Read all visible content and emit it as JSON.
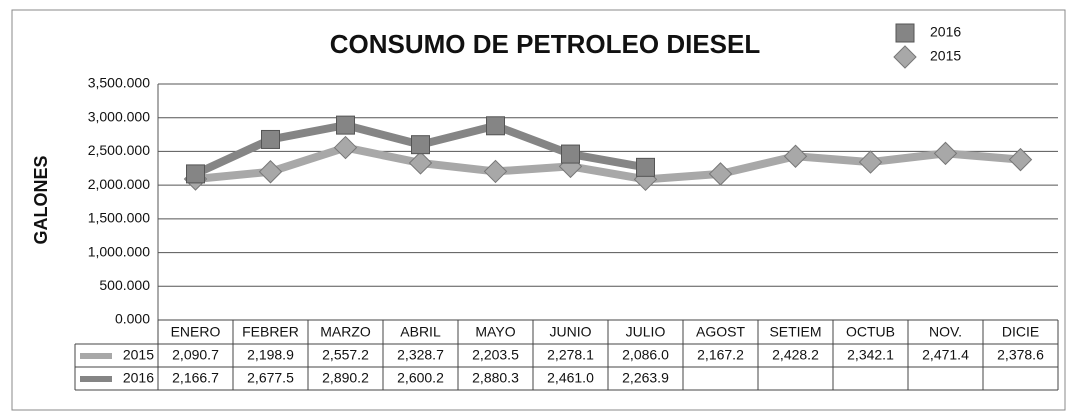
{
  "chart_data": {
    "type": "line",
    "title": "CONSUMO DE PETROLEO DIESEL",
    "y_label": "GALONES",
    "categories": [
      "ENERO",
      "FEBRER",
      "MARZO",
      "ABRIL",
      "MAYO",
      "JUNIO",
      "JULIO",
      "AGOST",
      "SETIEM",
      "OCTUB",
      "NOV.",
      "DICIE"
    ],
    "series": [
      {
        "name": "2015",
        "color": "#a8a8a8",
        "marker": "diamond",
        "values": [
          2090.7,
          2198.9,
          2557.2,
          2328.7,
          2203.5,
          2278.1,
          2086.0,
          2167.2,
          2428.2,
          2342.1,
          2471.4,
          2378.6
        ],
        "value_labels": [
          "2,090.7",
          "2,198.9",
          "2,557.2",
          "2,328.7",
          "2,203.5",
          "2,278.1",
          "2,086.0",
          "2,167.2",
          "2,428.2",
          "2,342.1",
          "2,471.4",
          "2,378.6"
        ]
      },
      {
        "name": "2016",
        "color": "#858585",
        "marker": "square",
        "values": [
          2166.7,
          2677.5,
          2890.2,
          2600.2,
          2880.3,
          2461.0,
          2263.9,
          null,
          null,
          null,
          null,
          null
        ],
        "value_labels": [
          "2,166.7",
          "2,677.5",
          "2,890.2",
          "2,600.2",
          "2,880.3",
          "2,461.0",
          "2,263.9",
          null,
          null,
          null,
          null,
          null
        ]
      }
    ],
    "ylim": [
      0,
      3500
    ],
    "yticks": [
      {
        "value": 0,
        "label": "0.000"
      },
      {
        "value": 500,
        "label": "500.000"
      },
      {
        "value": 1000,
        "label": "1,000.000"
      },
      {
        "value": 1500,
        "label": "1,500.000"
      },
      {
        "value": 2000,
        "label": "2,000.000"
      },
      {
        "value": 2500,
        "label": "2,500.000"
      },
      {
        "value": 3000,
        "label": "3,000.000"
      },
      {
        "value": 3500,
        "label": "3,500.000"
      }
    ],
    "grid": true,
    "legend": "top-right"
  }
}
